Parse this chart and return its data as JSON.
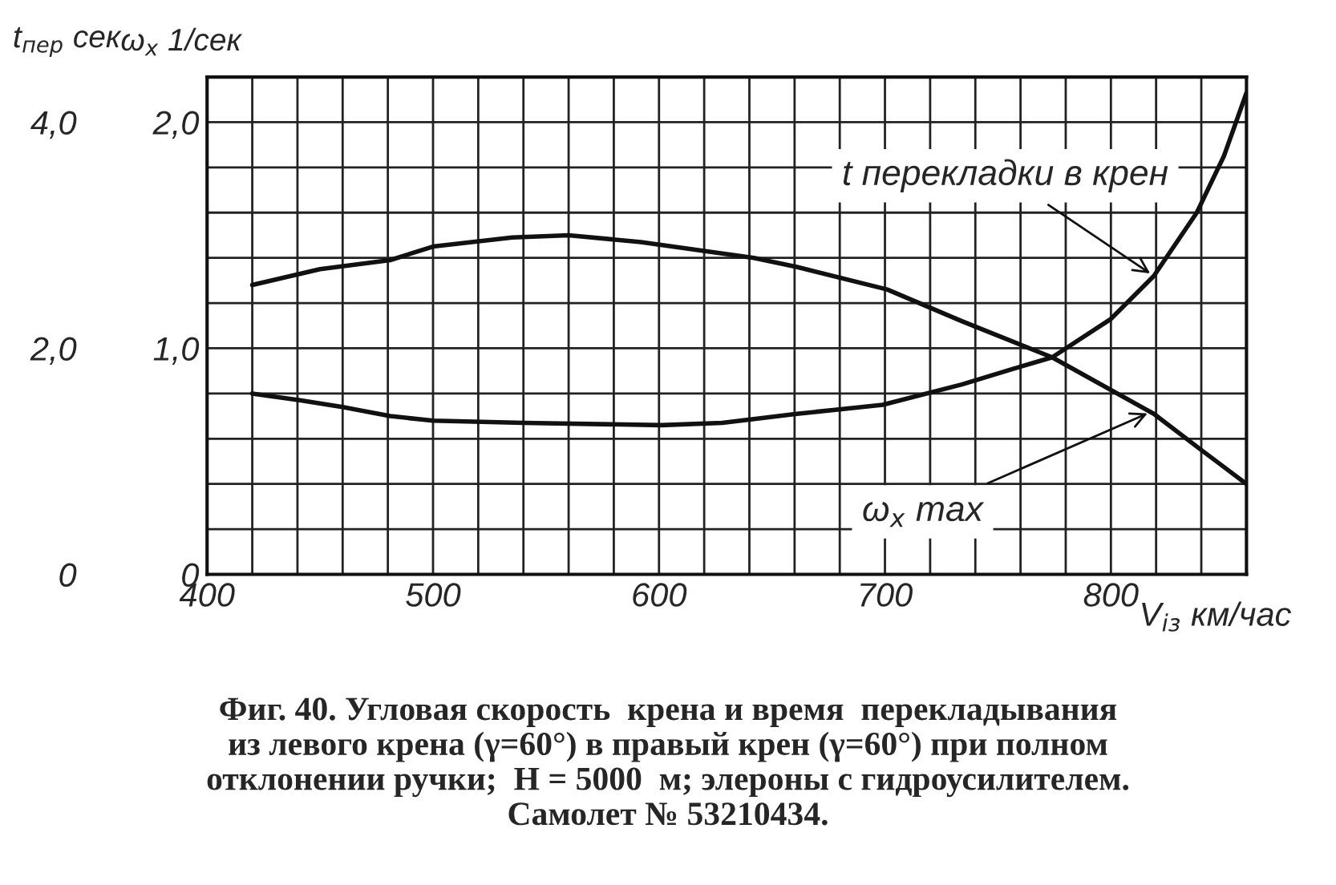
{
  "chart_data": {
    "type": "line",
    "xlabel": "V$_{iз}$ км/час",
    "ylabel": "ω$_{x}$ 1/сек",
    "y2label": "t$_{пер}$ сек",
    "x": [
      420,
      441,
      460,
      481,
      500,
      540,
      601,
      628,
      661,
      699,
      734,
      757,
      774,
      800,
      819,
      838,
      850,
      860
    ],
    "series": [
      {
        "color": "#111111",
        "x": [
          420,
          450,
          481,
          500,
          535,
          560,
          592,
          642,
          661,
          701,
          734,
          774,
          819,
          840,
          860
        ],
        "values": [
          1.28,
          1.35,
          1.39,
          1.45,
          1.49,
          1.5,
          1.47,
          1.4,
          1.36,
          1.26,
          1.12,
          0.96,
          0.71,
          0.55,
          0.4
        ]
      },
      {
        "color": "#111111",
        "axis": "y2",
        "values": [
          1.6,
          1.54,
          1.48,
          1.4,
          1.36,
          1.34,
          1.32,
          1.34,
          1.42,
          1.5,
          1.68,
          1.82,
          1.92,
          2.26,
          2.64,
          3.2,
          3.7,
          4.26
        ]
      }
    ],
    "xlim": [
      400,
      860
    ],
    "xticks": [
      400,
      {
        "value": 420,
        "label": null
      },
      {
        "value": 440,
        "label": null
      },
      {
        "value": 460,
        "label": null
      },
      {
        "value": 480,
        "label": null
      },
      500,
      {
        "value": 520,
        "label": null
      },
      {
        "value": 540,
        "label": null
      },
      {
        "value": 560,
        "label": null
      },
      {
        "value": 580,
        "label": null
      },
      600,
      {
        "value": 620,
        "label": null
      },
      {
        "value": 640,
        "label": null
      },
      {
        "value": 660,
        "label": null
      },
      {
        "value": 680,
        "label": null
      },
      700,
      {
        "value": 720,
        "label": null
      },
      {
        "value": 740,
        "label": null
      },
      {
        "value": 760,
        "label": null
      },
      {
        "value": 780,
        "label": null
      },
      800,
      {
        "value": 820,
        "label": null
      },
      {
        "value": 840,
        "label": null
      }
    ],
    "ylim": [
      0,
      2.2
    ],
    "yticks": [
      0,
      {
        "value": 0.2,
        "label": null
      },
      {
        "value": 0.4,
        "label": null
      },
      {
        "value": 0.6,
        "label": null
      },
      {
        "value": 0.8,
        "label": null
      },
      {
        "value": 1.0,
        "label": "1,0"
      },
      {
        "value": 1.2,
        "label": null
      },
      {
        "value": 1.4,
        "label": null
      },
      {
        "value": 1.6,
        "label": null
      },
      {
        "value": 1.8,
        "label": null
      },
      {
        "value": 2.0,
        "label": "2,0"
      }
    ],
    "y2lim": [
      0,
      4.4
    ],
    "y2ticks": [
      0,
      {
        "value": 2.0,
        "label": "2,0"
      },
      {
        "value": 4.0,
        "label": "4,0"
      }
    ],
    "grid": true,
    "legend": false,
    "line_style": "solid",
    "marker": "none",
    "annotations": [
      {
        "text": "t перекладки в крен",
        "x": 819,
        "y": 1.32
      },
      {
        "text": "ω$_{x}$ max",
        "x": 818,
        "y": 0.72
      },
      "Фиг. 40. Угловая скорость  крена и время  перекладывания\nиз левого крена (γ=60°) в правый крен (γ=60°) при полном\nотклонении ручки;  H = 5000  м; элероны с гидроусилителем.\nСамолет № 53210434."
    ]
  }
}
